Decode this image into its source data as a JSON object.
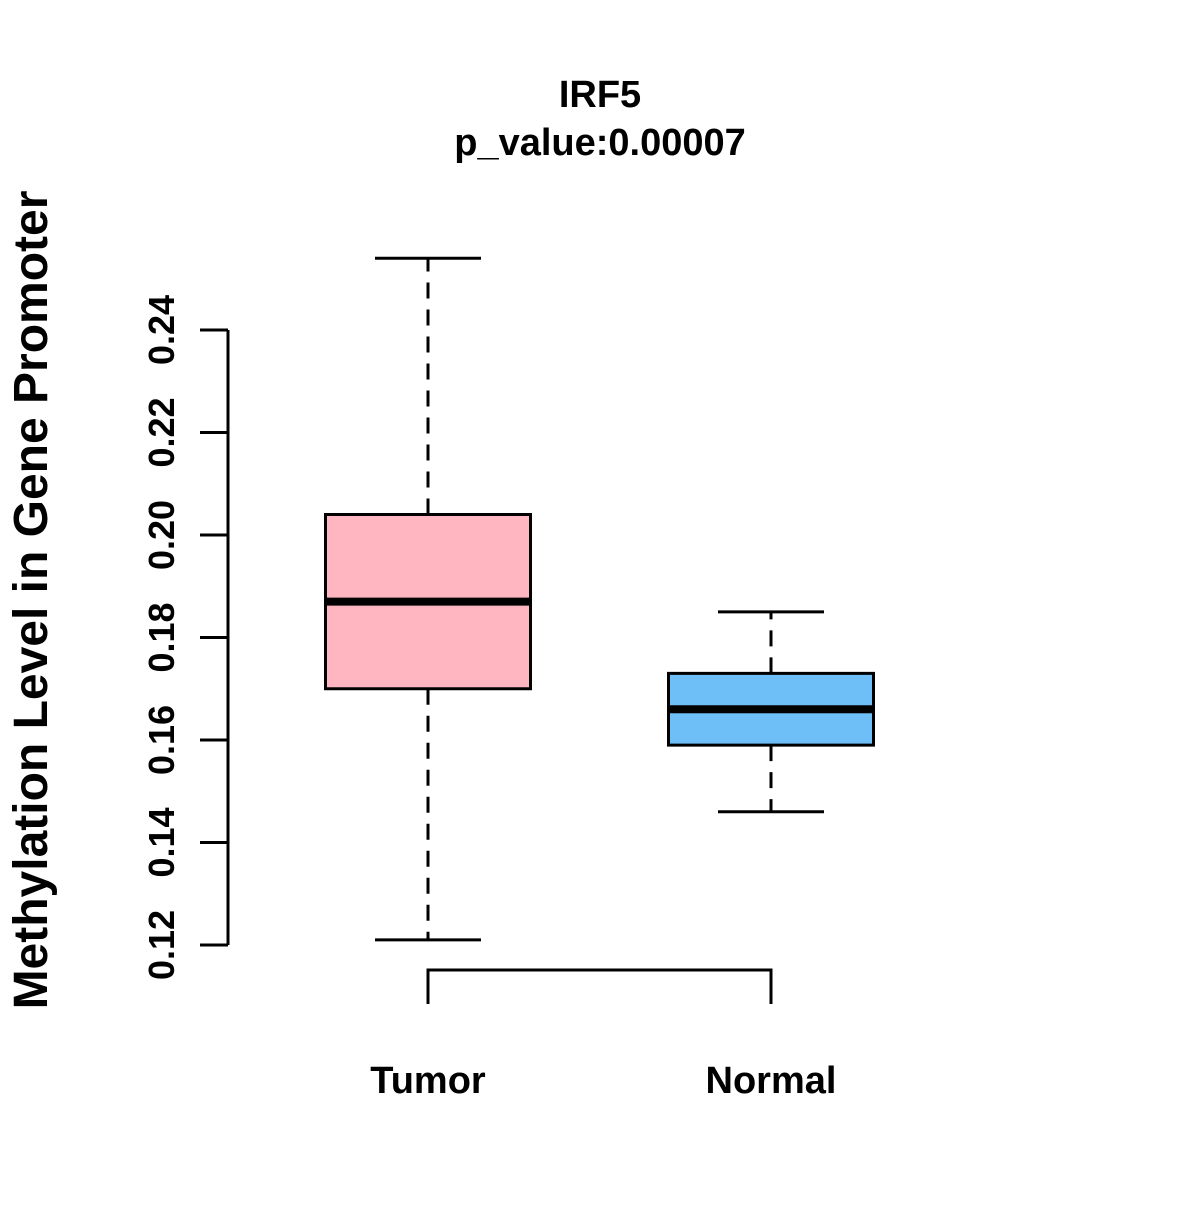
{
  "figure": {
    "background": "#ffffff",
    "line_color": "#000000"
  },
  "chart_data": {
    "type": "boxplot",
    "title": "IRF5",
    "subtitle": "p_value:0.00007",
    "ylabel": "Methylation Level in Gene Promoter",
    "xlabel": "",
    "yticks": [
      "0.12",
      "0.14",
      "0.16",
      "0.18",
      "0.20",
      "0.22",
      "0.24"
    ],
    "ylim": [
      0.118,
      0.256
    ],
    "grid": false,
    "legend": "none",
    "categories": [
      "Tumor",
      "Normal"
    ],
    "series": [
      {
        "name": "Tumor",
        "color": "#FFB6C1",
        "whisker_low": 0.121,
        "q1": 0.17,
        "median": 0.187,
        "q3": 0.204,
        "whisker_high": 0.254
      },
      {
        "name": "Normal",
        "color": "#6EBEF7",
        "whisker_low": 0.146,
        "q1": 0.159,
        "median": 0.166,
        "q3": 0.173,
        "whisker_high": 0.185
      }
    ]
  }
}
